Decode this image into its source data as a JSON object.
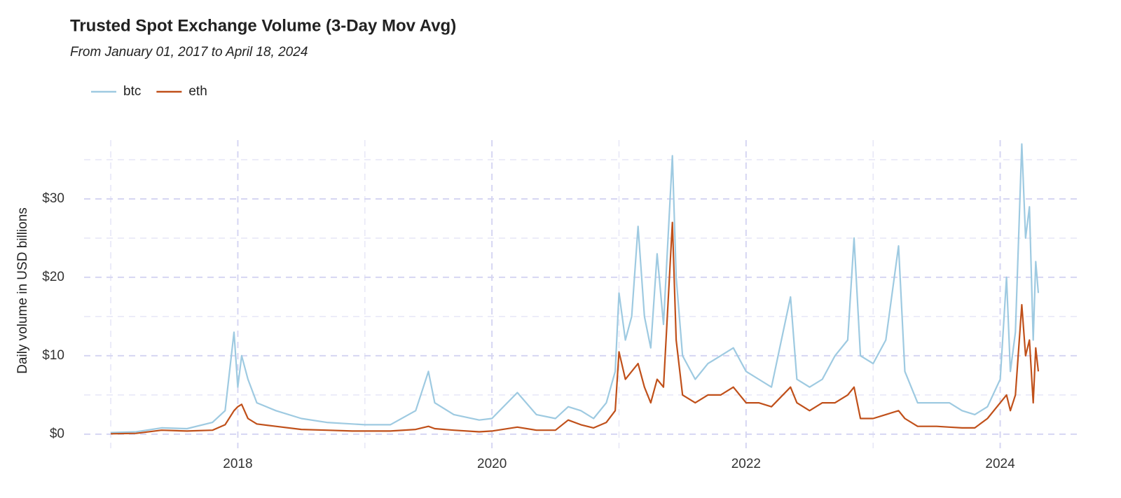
{
  "chart_data": {
    "type": "line",
    "title": "Trusted Spot Exchange Volume (3-Day Mov Avg)",
    "subtitle": "From January 01, 2017 to April 18, 2024",
    "y_label": "Daily volume in USD billions",
    "x": [
      2017.0,
      2017.2,
      2017.4,
      2017.6,
      2017.8,
      2017.9,
      2017.97,
      2018.0,
      2018.03,
      2018.08,
      2018.15,
      2018.3,
      2018.5,
      2018.7,
      2018.9,
      2019.0,
      2019.2,
      2019.4,
      2019.5,
      2019.55,
      2019.7,
      2019.9,
      2020.0,
      2020.2,
      2020.35,
      2020.5,
      2020.6,
      2020.7,
      2020.8,
      2020.9,
      2020.97,
      2021.0,
      2021.05,
      2021.1,
      2021.15,
      2021.2,
      2021.25,
      2021.3,
      2021.35,
      2021.42,
      2021.45,
      2021.5,
      2021.6,
      2021.7,
      2021.8,
      2021.9,
      2022.0,
      2022.1,
      2022.2,
      2022.35,
      2022.4,
      2022.5,
      2022.6,
      2022.7,
      2022.8,
      2022.85,
      2022.9,
      2023.0,
      2023.1,
      2023.2,
      2023.25,
      2023.35,
      2023.5,
      2023.6,
      2023.7,
      2023.8,
      2023.9,
      2024.0,
      2024.05,
      2024.08,
      2024.12,
      2024.17,
      2024.2,
      2024.23,
      2024.26,
      2024.28,
      2024.3
    ],
    "series": [
      {
        "name": "btc",
        "color": "#9ecae1",
        "values": [
          0.2,
          0.3,
          0.8,
          0.7,
          1.5,
          3,
          13,
          6,
          10,
          7,
          4,
          3,
          2,
          1.5,
          1.3,
          1.2,
          1.2,
          3,
          8,
          4,
          2.5,
          1.8,
          2,
          5.3,
          2.5,
          2,
          3.5,
          3,
          2,
          4,
          8,
          18,
          12,
          15,
          26.5,
          15,
          11,
          23,
          14,
          35.5,
          20,
          10,
          7,
          9,
          10,
          11,
          8,
          7,
          6,
          17.5,
          7,
          6,
          7,
          10,
          12,
          25,
          10,
          9,
          12,
          24,
          8,
          4,
          4,
          4,
          3,
          2.5,
          3.5,
          7,
          20,
          8,
          13,
          37,
          25,
          29,
          12,
          22,
          18
        ]
      },
      {
        "name": "eth",
        "color": "#c0501a",
        "values": [
          0.05,
          0.1,
          0.5,
          0.4,
          0.5,
          1.2,
          3,
          3.5,
          3.8,
          2,
          1.3,
          1,
          0.6,
          0.5,
          0.4,
          0.4,
          0.4,
          0.6,
          1,
          0.7,
          0.5,
          0.3,
          0.4,
          0.9,
          0.5,
          0.5,
          1.8,
          1.2,
          0.8,
          1.5,
          3,
          10.5,
          7,
          8,
          9,
          6,
          4,
          7,
          6,
          27,
          12,
          5,
          4,
          5,
          5,
          6,
          4,
          4,
          3.5,
          6,
          4,
          3,
          4,
          4,
          5,
          6,
          2,
          2,
          2.5,
          3,
          2,
          1,
          1,
          0.9,
          0.8,
          0.8,
          2,
          4,
          5,
          3,
          5,
          16.5,
          10,
          12,
          4,
          11,
          8
        ]
      }
    ],
    "xlim": [
      2016.79,
      2024.62
    ],
    "xticks": [
      2018,
      2020,
      2022,
      2024
    ],
    "x_minor_ticks": [
      2017,
      2019,
      2021,
      2023
    ],
    "ylim": [
      -1.8,
      37.5
    ],
    "yticks": [
      {
        "value": 0,
        "label": "$0"
      },
      {
        "value": 10,
        "label": "$10"
      },
      {
        "value": 20,
        "label": "$20"
      },
      {
        "value": 30,
        "label": "$30"
      }
    ],
    "y_minor_ticks": [
      5,
      15,
      25,
      35
    ],
    "grid": true,
    "legend": "top-left"
  }
}
